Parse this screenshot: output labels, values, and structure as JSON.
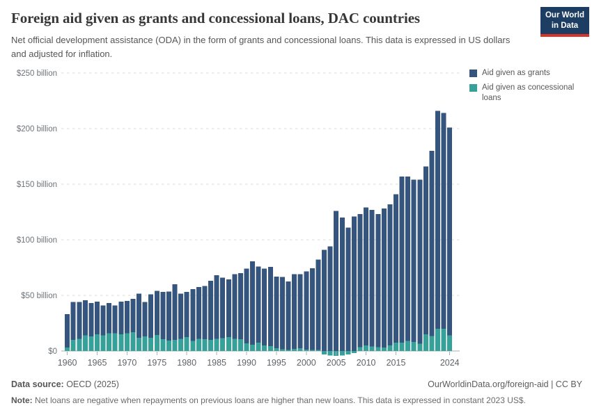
{
  "header": {
    "title": "Foreign aid given as grants and concessional loans, DAC countries",
    "subtitle": "Net official development assistance (ODA) in the form of grants and concessional loans. This data is expressed in US dollars and adjusted for inflation.",
    "logo": {
      "line1": "Our World",
      "line2": "in Data",
      "bg_color": "#1d3d63",
      "accent_color": "#d8352a"
    }
  },
  "legend": {
    "items": [
      {
        "label": "Aid given as grants",
        "color": "#35557e"
      },
      {
        "label": "Aid given as concessional loans",
        "color": "#35a198"
      }
    ]
  },
  "chart_data": {
    "type": "bar",
    "stacked": true,
    "title": "Foreign aid given as grants and concessional loans, DAC countries",
    "unit": "billion US$ (constant 2023)",
    "grid": "horizontal-dashed",
    "legend_position": "top-right",
    "ylim": [
      -10,
      250
    ],
    "x": [
      1960,
      1961,
      1962,
      1963,
      1964,
      1965,
      1966,
      1967,
      1968,
      1969,
      1970,
      1971,
      1972,
      1973,
      1974,
      1975,
      1976,
      1977,
      1978,
      1979,
      1980,
      1981,
      1982,
      1983,
      1984,
      1985,
      1986,
      1987,
      1988,
      1989,
      1990,
      1991,
      1992,
      1993,
      1994,
      1995,
      1996,
      1997,
      1998,
      1999,
      2000,
      2001,
      2002,
      2003,
      2004,
      2005,
      2006,
      2007,
      2008,
      2009,
      2010,
      2011,
      2012,
      2013,
      2014,
      2015,
      2016,
      2017,
      2018,
      2019,
      2020,
      2021,
      2022,
      2023,
      2024
    ],
    "series": [
      {
        "name": "Aid given as concessional loans",
        "color": "#35a198",
        "values": [
          3,
          10,
          11,
          14,
          13,
          15,
          14,
          16,
          16,
          15,
          16,
          17,
          12,
          13,
          12,
          14.5,
          10.5,
          9.5,
          10,
          11,
          12.5,
          9,
          11,
          10.5,
          10,
          11,
          11.5,
          12.5,
          11,
          10.5,
          7,
          5.5,
          7.5,
          5,
          4.5,
          2.5,
          1.5,
          1,
          2,
          2.5,
          1.2,
          0.8,
          0.8,
          -3,
          -4,
          -4.5,
          -4,
          -3,
          -2,
          3.5,
          5,
          4,
          3.5,
          3,
          5,
          7.5,
          7.5,
          9,
          8,
          6.5,
          15,
          13.5,
          20,
          20,
          14
        ]
      },
      {
        "name": "Aid given as grants",
        "color": "#35557e",
        "values": [
          30,
          34,
          33,
          31.5,
          30,
          29.5,
          27,
          27,
          25,
          29.5,
          29,
          30,
          39.5,
          31,
          39,
          39.5,
          42.5,
          44,
          50,
          40.5,
          40.5,
          46.5,
          46.5,
          48,
          53,
          57,
          54.5,
          52,
          58,
          59.5,
          67,
          75,
          68.5,
          69,
          71,
          64.5,
          65,
          61.5,
          67,
          66.5,
          70.5,
          73.5,
          81.5,
          91,
          94,
          126,
          120,
          111,
          121,
          119.5,
          124,
          123,
          119.5,
          125,
          127,
          133.5,
          149.5,
          148,
          146,
          147.5,
          151,
          166.5,
          196,
          194,
          187
        ]
      }
    ],
    "y_ticks": [
      0,
      50,
      100,
      150,
      200,
      250
    ],
    "y_tick_labels": [
      "$0",
      "$50 billion",
      "$100 billion",
      "$150 billion",
      "$200 billion",
      "$250 billion"
    ],
    "x_tick_labels": [
      1960,
      1965,
      1970,
      1975,
      1980,
      1985,
      1990,
      1995,
      2000,
      2005,
      2010,
      2015,
      2024
    ]
  },
  "footer": {
    "datasource_label": "Data source:",
    "datasource_value": " OECD (2025)",
    "credit": "OurWorldinData.org/foreign-aid | CC BY",
    "note_label": "Note:",
    "note_value": " Net loans are negative when repayments on previous loans are higher than new loans. This data is expressed in constant 2023 US$."
  }
}
